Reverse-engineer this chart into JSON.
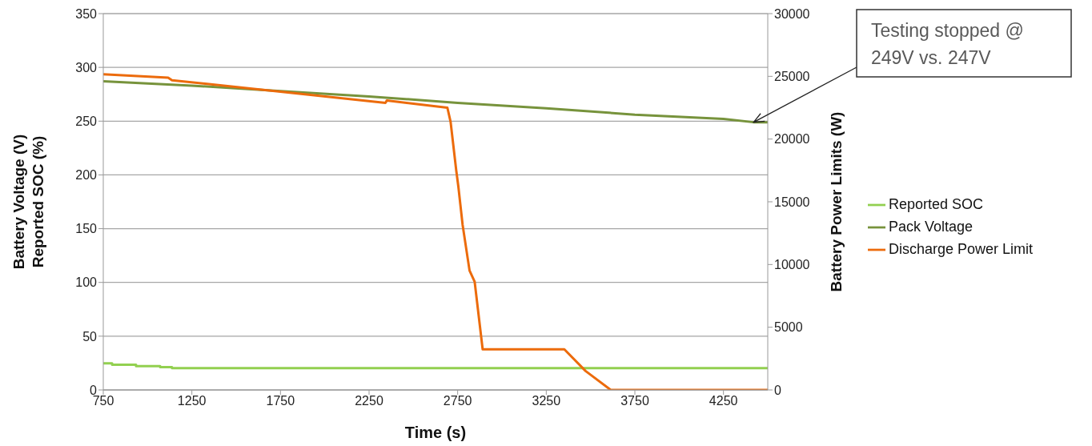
{
  "chart_data": {
    "type": "line",
    "xlabel": "Time (s)",
    "ylabel": "Battery Voltage (V)\nReported SOC (%)",
    "y2label": "Battery Power Limits (W)",
    "xlim": [
      750,
      4500
    ],
    "xticks": [
      750,
      1250,
      1750,
      2250,
      2750,
      3250,
      3750,
      4250
    ],
    "ylim": [
      0,
      350
    ],
    "yticks": [
      0,
      50,
      100,
      150,
      200,
      250,
      300,
      350
    ],
    "y2lim": [
      0,
      30000
    ],
    "y2ticks": [
      0,
      5000,
      10000,
      15000,
      20000,
      25000,
      30000
    ],
    "grid": "y",
    "legend": "right",
    "marker": "none",
    "line_style": "solid",
    "series": [
      {
        "name": "Reported SOC",
        "color": "#92d050",
        "type": "step",
        "x": [
          750,
          800,
          935,
          1071,
          1138,
          4500
        ],
        "values": [
          24.7,
          23.4,
          22.2,
          21.2,
          20.2,
          20.2
        ]
      },
      {
        "name": "Pack Voltage",
        "color": "#77933c",
        "x": [
          750,
          1250,
          1750,
          2250,
          2750,
          3250,
          3750,
          4250,
          4420,
          4500
        ],
        "values": [
          287,
          283,
          278,
          273,
          267,
          262,
          256,
          252,
          249,
          249
        ]
      },
      {
        "name": "Discharge Power Limit",
        "color": "#ec6b0c",
        "axis": "y2",
        "x": [
          750,
          1116,
          1138,
          2343,
          2350,
          2692,
          2710,
          2742,
          2754,
          2778,
          2817,
          2846,
          2891,
          3352,
          3472,
          3614,
          4500
        ],
        "values": [
          25160,
          24900,
          24690,
          22890,
          23070,
          22500,
          21380,
          17490,
          16200,
          13150,
          9520,
          8620,
          3240,
          3240,
          1510,
          0,
          0
        ]
      }
    ],
    "annotations": [
      {
        "text": "Testing stopped @ 249V vs. 247V",
        "x": 4420,
        "y": 249
      }
    ]
  }
}
